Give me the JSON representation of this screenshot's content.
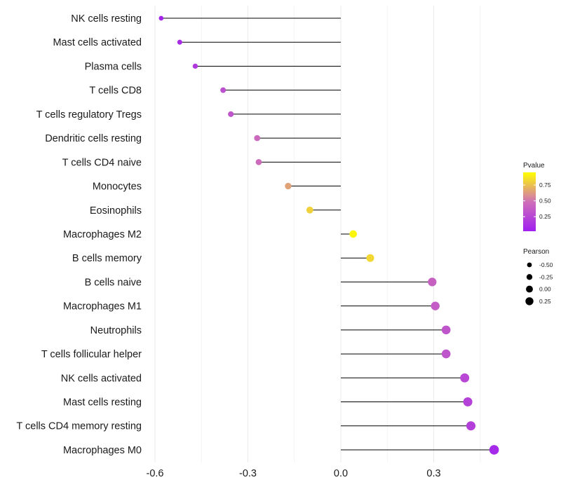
{
  "chart_data": {
    "type": "lollipop",
    "title": "",
    "xlabel": "",
    "ylabel": "",
    "xlim": [
      -0.62,
      0.5
    ],
    "xticks": [
      -0.6,
      -0.3,
      0.0,
      0.3
    ],
    "xtick_labels": [
      "-0.6",
      "-0.3",
      "0.0",
      "0.3"
    ],
    "baseline": 0,
    "grid": true,
    "points": [
      {
        "label": "NK cells resting",
        "value": -0.58,
        "pvalue": 0.05
      },
      {
        "label": "Mast cells activated",
        "value": -0.52,
        "pvalue": 0.1
      },
      {
        "label": "Plasma cells",
        "value": -0.47,
        "pvalue": 0.17
      },
      {
        "label": "T cells CD8",
        "value": -0.38,
        "pvalue": 0.3
      },
      {
        "label": "T cells regulatory  Tregs ",
        "value": -0.355,
        "pvalue": 0.33
      },
      {
        "label": "Dendritic cells resting",
        "value": -0.27,
        "pvalue": 0.45
      },
      {
        "label": "T cells CD4 naive",
        "value": -0.265,
        "pvalue": 0.46
      },
      {
        "label": "Monocytes",
        "value": -0.17,
        "pvalue": 0.65
      },
      {
        "label": "Eosinophils",
        "value": -0.1,
        "pvalue": 0.8
      },
      {
        "label": "Macrophages M2",
        "value": 0.04,
        "pvalue": 0.92
      },
      {
        "label": "B cells memory",
        "value": 0.095,
        "pvalue": 0.82
      },
      {
        "label": "B cells naive",
        "value": 0.295,
        "pvalue": 0.4
      },
      {
        "label": "Macrophages M1",
        "value": 0.305,
        "pvalue": 0.38
      },
      {
        "label": "Neutrophils",
        "value": 0.34,
        "pvalue": 0.33
      },
      {
        "label": "T cells follicular helper",
        "value": 0.34,
        "pvalue": 0.33
      },
      {
        "label": "NK cells activated",
        "value": 0.4,
        "pvalue": 0.25
      },
      {
        "label": "Mast cells resting",
        "value": 0.41,
        "pvalue": 0.22
      },
      {
        "label": "T cells CD4 memory resting",
        "value": 0.42,
        "pvalue": 0.2
      },
      {
        "label": "Macrophages M0",
        "value": 0.495,
        "pvalue": 0.08
      }
    ],
    "legend": {
      "placement": "right",
      "color": {
        "title": "Pvalue",
        "ticks": [
          0.75,
          0.5,
          0.25
        ],
        "tick_labels": [
          "0.75",
          "0.50",
          "0.25"
        ],
        "range": [
          0.02,
          0.95
        ],
        "colors": [
          "#a020f0",
          "#cf6fb8",
          "#ffff00"
        ]
      },
      "size": {
        "title": "Pearson",
        "values": [
          -0.5,
          -0.25,
          0.0,
          0.25
        ],
        "labels": [
          "-0.50",
          "-0.25",
          "0.00",
          "0.25"
        ]
      }
    }
  }
}
